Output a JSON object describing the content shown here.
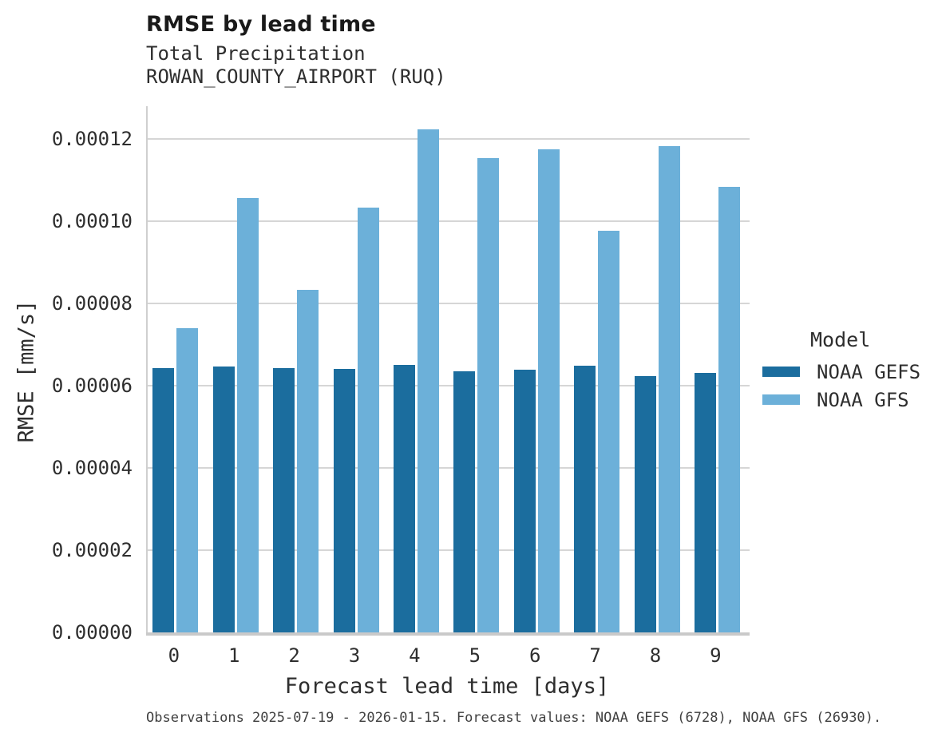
{
  "header": {
    "title": "RMSE by lead time",
    "subtitle_line1": "Total Precipitation",
    "subtitle_line2": "ROWAN_COUNTY_AIRPORT (RUQ)"
  },
  "chart_data": {
    "type": "bar",
    "title": "RMSE by lead time",
    "subtitle": [
      "Total Precipitation",
      "ROWAN_COUNTY_AIRPORT (RUQ)"
    ],
    "categories": [
      "0",
      "1",
      "2",
      "3",
      "4",
      "5",
      "6",
      "7",
      "8",
      "9"
    ],
    "series": [
      {
        "name": "NOAA GEFS",
        "color": "#1b6d9e",
        "values": [
          6.43e-05,
          6.47e-05,
          6.43e-05,
          6.41e-05,
          6.5e-05,
          6.35e-05,
          6.39e-05,
          6.49e-05,
          6.24e-05,
          6.32e-05
        ]
      },
      {
        "name": "NOAA GFS",
        "color": "#6cb0d9",
        "values": [
          7.4e-05,
          0.0001056,
          8.34e-05,
          0.0001034,
          0.0001223,
          0.0001153,
          0.0001175,
          9.77e-05,
          0.0001183,
          0.0001083
        ]
      }
    ],
    "xlabel": "Forecast lead time [days]",
    "ylabel": "RMSE [mm/s]",
    "ylim": [
      0,
      0.000128
    ],
    "yticks": [
      0,
      2e-05,
      4e-05,
      6e-05,
      8e-05,
      0.0001,
      0.00012
    ],
    "ytick_labels": [
      "0.00000",
      "0.00002",
      "0.00004",
      "0.00006",
      "0.00008",
      "0.00010",
      "0.00012"
    ],
    "grid": true,
    "legend_title": "Model",
    "legend_position": "right"
  },
  "legend": {
    "title": "Model",
    "items": [
      {
        "label": "NOAA GEFS",
        "color": "#1b6d9e"
      },
      {
        "label": "NOAA GFS",
        "color": "#6cb0d9"
      }
    ]
  },
  "footer": {
    "note": "Observations 2025-07-19 - 2026-01-15. Forecast values: NOAA GEFS (6728), NOAA GFS (26930)."
  },
  "colors": {
    "background": "#ffffff",
    "gridline": "#d6d6d6",
    "axis_line": "#c9c9c9",
    "title_text": "#1a1a1a",
    "body_text": "#2e2e2e",
    "footer_text": "#404040"
  }
}
